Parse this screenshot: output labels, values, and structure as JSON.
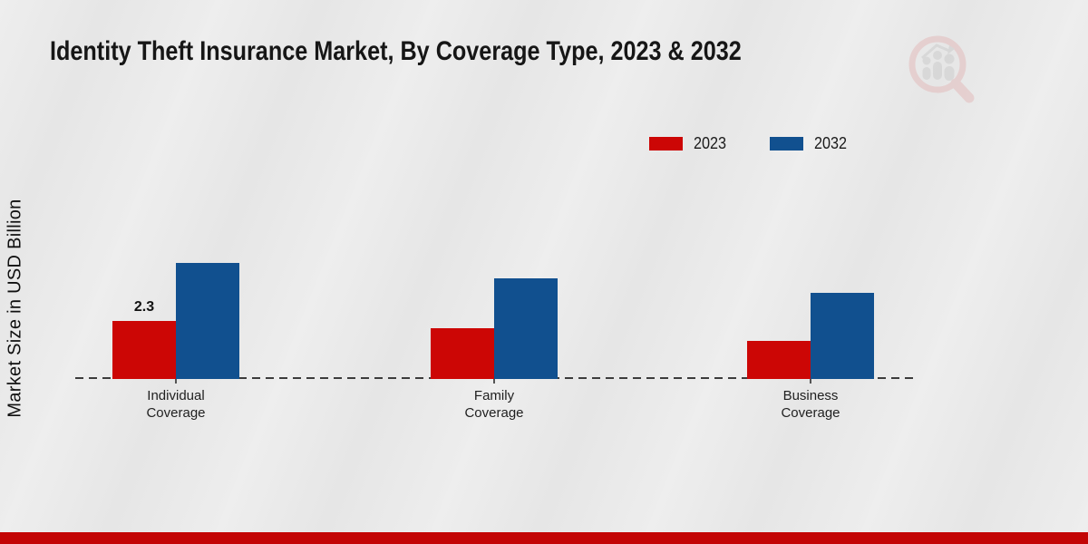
{
  "chart_data": {
    "type": "bar",
    "title": "Identity Theft Insurance Market, By Coverage Type, 2023 & 2032",
    "ylabel": "Market Size in USD Billion",
    "xlabel": "",
    "categories": [
      "Individual Coverage",
      "Family Coverage",
      "Business Coverage"
    ],
    "series": [
      {
        "name": "2023",
        "color": "#cc0605",
        "values": [
          2.3,
          2.0,
          1.5
        ]
      },
      {
        "name": "2032",
        "color": "#11508f",
        "values": [
          4.6,
          4.0,
          3.4
        ]
      }
    ],
    "annotations": [
      {
        "series_index": 0,
        "category_index": 0,
        "text": "2.3"
      }
    ],
    "ylim": [
      0,
      5
    ],
    "grid": false,
    "baseline_style": "dashed",
    "legend_position": "top-right"
  },
  "branding": {
    "watermark_icon": "magnifier-bar-chart-logo",
    "footer_accent_color": "#c30505",
    "watermark_pink": "#e3bcbc",
    "watermark_gray": "#cccccc"
  }
}
